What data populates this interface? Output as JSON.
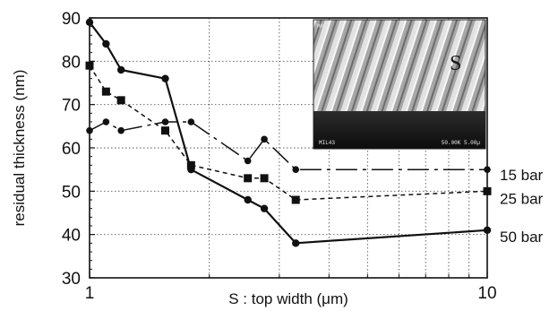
{
  "chart_data": {
    "type": "line",
    "xlabel": "S : top width (μm)",
    "ylabel": "residual thickness (nm)",
    "xscale": "log",
    "xlim": [
      1,
      10
    ],
    "ylim": [
      30,
      90
    ],
    "xticks": [
      {
        "value": 1,
        "label": "1"
      },
      {
        "value": 10,
        "label": "10"
      }
    ],
    "yticks": [
      30,
      40,
      50,
      60,
      70,
      80,
      90
    ],
    "grid": true,
    "series": [
      {
        "name": "15 bar",
        "marker": "triangle",
        "line": "dash-dot",
        "points": [
          [
            1.0,
            64
          ],
          [
            1.1,
            66
          ],
          [
            1.2,
            64
          ],
          [
            1.55,
            66
          ],
          [
            1.8,
            66
          ],
          [
            2.5,
            57
          ],
          [
            2.75,
            62
          ],
          [
            3.3,
            55
          ],
          [
            10.0,
            55
          ]
        ]
      },
      {
        "name": "25 bar",
        "marker": "square",
        "line": "dashed",
        "points": [
          [
            1.0,
            79
          ],
          [
            1.1,
            73
          ],
          [
            1.2,
            71
          ],
          [
            1.55,
            64
          ],
          [
            1.8,
            56
          ],
          [
            2.5,
            53
          ],
          [
            2.75,
            53
          ],
          [
            3.3,
            48
          ],
          [
            10.0,
            50
          ]
        ]
      },
      {
        "name": "50 bar",
        "marker": "circle",
        "line": "solid",
        "points": [
          [
            1.0,
            89
          ],
          [
            1.1,
            84
          ],
          [
            1.2,
            78
          ],
          [
            1.55,
            76
          ],
          [
            1.8,
            55
          ],
          [
            2.5,
            48
          ],
          [
            2.75,
            46
          ],
          [
            3.3,
            38
          ],
          [
            10.0,
            41
          ]
        ]
      }
    ],
    "inset": {
      "label": "S",
      "scale_left": "MIL43",
      "scale_right": "50.00K 5.00µ",
      "corner": "MAG"
    }
  }
}
